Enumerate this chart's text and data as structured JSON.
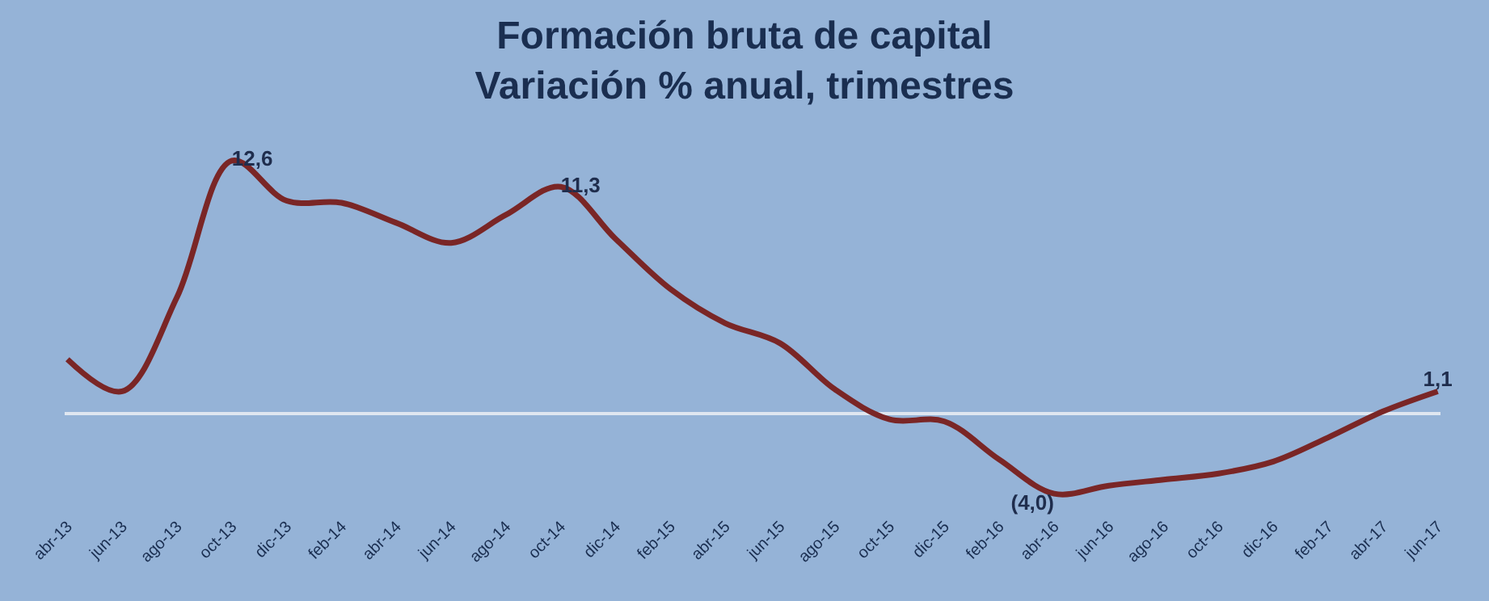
{
  "chart_data": {
    "type": "line",
    "title": "Formación bruta de capital\nVariación % anual, trimestres",
    "categories": [
      "abr-13",
      "jun-13",
      "ago-13",
      "oct-13",
      "dic-13",
      "feb-14",
      "abr-14",
      "jun-14",
      "ago-14",
      "oct-14",
      "dic-14",
      "feb-15",
      "abr-15",
      "jun-15",
      "ago-15",
      "oct-15",
      "dic-15",
      "feb-16",
      "abr-16",
      "jun-16",
      "ago-16",
      "oct-16",
      "dic-16",
      "feb-17",
      "abr-17",
      "jun-17"
    ],
    "series": [
      {
        "color": "#7a2626",
        "values": [
          2.7,
          1.1,
          5.8,
          12.6,
          10.6,
          10.5,
          9.5,
          8.5,
          9.9,
          11.3,
          8.7,
          6.2,
          4.5,
          3.5,
          1.2,
          -0.3,
          -0.4,
          -2.3,
          -4.0,
          -3.6,
          -3.3,
          -3.0,
          -2.4,
          -1.2,
          0.1,
          1.1
        ],
        "value_labels": [
          null,
          null,
          null,
          "12,6",
          null,
          null,
          null,
          null,
          null,
          "11,3",
          null,
          null,
          null,
          null,
          null,
          null,
          null,
          null,
          "(4,0)",
          null,
          null,
          null,
          null,
          null,
          null,
          "1,1"
        ]
      }
    ],
    "tick_labels": "x",
    "marker": "none",
    "line_style": "solid"
  }
}
